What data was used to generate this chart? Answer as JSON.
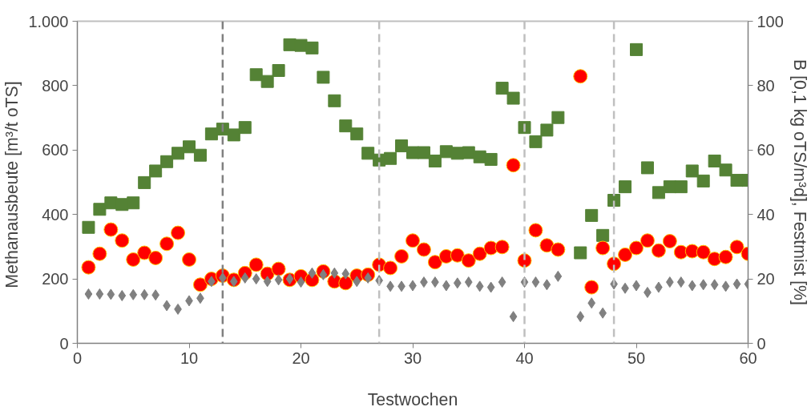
{
  "chart_data": {
    "type": "scatter",
    "xlabel": "Testwochen",
    "ylabel": "Methanausbeute  [m³/t oTS]",
    "y2label": "B [0,1 kg oTS/m³d], Festmist [%]",
    "xlim": [
      0,
      60
    ],
    "xticks": [
      0,
      10,
      20,
      30,
      40,
      50,
      60
    ],
    "ylim": [
      0,
      1000
    ],
    "yticks": [
      0,
      200,
      400,
      600,
      800,
      {
        "value": 1000,
        "label": "1.000"
      }
    ],
    "y2lim": [
      0,
      100
    ],
    "y2ticks": [
      0,
      20,
      40,
      60,
      80,
      100
    ],
    "grid": false,
    "ref_lines": [
      {
        "axis": "x",
        "value": 13,
        "color": "#808080",
        "line_style": "dashed"
      },
      {
        "axis": "x",
        "value": 27,
        "color": "#bfbfbf",
        "line_style": "dashed"
      },
      {
        "axis": "x",
        "value": 40,
        "color": "#bfbfbf",
        "line_style": "dashed"
      },
      {
        "axis": "x",
        "value": 48,
        "color": "#bfbfbf",
        "line_style": "dashed"
      }
    ],
    "series": [
      {
        "color": "#548235",
        "marker": "square",
        "axis": "y2",
        "x": [
          1,
          2,
          3,
          4,
          5,
          6,
          7,
          8,
          9,
          10,
          11,
          12,
          13,
          14,
          15,
          16,
          17,
          18,
          19,
          20,
          21,
          22,
          23,
          24,
          25,
          26,
          27,
          28,
          29,
          30,
          31,
          32,
          33,
          34,
          35,
          36,
          37,
          38,
          39,
          40,
          41,
          42,
          43,
          45,
          46,
          47,
          48,
          49,
          50,
          51,
          52,
          53,
          54,
          55,
          56,
          57,
          58,
          59,
          60
        ],
        "values": [
          36,
          41.6,
          43.6,
          43.1,
          43.6,
          49.9,
          53.5,
          56.4,
          59,
          61,
          58.4,
          65,
          66.5,
          64.7,
          67,
          83.4,
          81.3,
          84.7,
          92.7,
          92.5,
          91.7,
          82.6,
          75.3,
          67.5,
          65,
          59,
          56.9,
          57.4,
          61.3,
          59.2,
          59.2,
          56.6,
          59.5,
          59,
          59.2,
          57.9,
          57.1,
          79.2,
          76.1,
          67,
          62.6,
          66.2,
          70.1,
          28.1,
          39.7,
          33.5,
          44.4,
          48.6,
          91.2,
          54.5,
          46.8,
          48.6,
          48.6,
          53.5,
          50.4,
          56.6,
          53.8,
          50.6,
          50.6
        ]
      },
      {
        "color": "#ff0000",
        "marker": "circle",
        "axis": "y",
        "x": [
          1,
          2,
          3,
          4,
          5,
          6,
          7,
          8,
          9,
          10,
          11,
          12,
          13,
          14,
          15,
          16,
          17,
          18,
          19,
          20,
          21,
          22,
          23,
          24,
          25,
          26,
          27,
          28,
          29,
          30,
          31,
          32,
          33,
          34,
          35,
          36,
          37,
          38,
          39,
          40,
          41,
          42,
          43,
          45,
          46,
          47,
          48,
          49,
          50,
          51,
          52,
          53,
          54,
          55,
          56,
          57,
          58,
          59,
          60
        ],
        "values": [
          236,
          278,
          353,
          319,
          260,
          281,
          265,
          309,
          343,
          260,
          182,
          200,
          210,
          197,
          218,
          244,
          216,
          231,
          197,
          208,
          197,
          223,
          192,
          187,
          210,
          213,
          244,
          234,
          270,
          319,
          291,
          252,
          270,
          273,
          257,
          278,
          296,
          299,
          553,
          257,
          351,
          304,
          291,
          829,
          174,
          296,
          247,
          275,
          296,
          319,
          288,
          317,
          283,
          286,
          283,
          262,
          268,
          299,
          278
        ]
      },
      {
        "color": "#808080",
        "marker": "diamond",
        "axis": "y2",
        "x": [
          1,
          2,
          3,
          4,
          5,
          6,
          7,
          8,
          9,
          10,
          11,
          12,
          13,
          14,
          15,
          16,
          17,
          18,
          19,
          20,
          21,
          22,
          23,
          24,
          25,
          26,
          27,
          28,
          29,
          30,
          31,
          32,
          33,
          34,
          35,
          36,
          37,
          38,
          39,
          40,
          41,
          42,
          43,
          45,
          46,
          47,
          48,
          49,
          50,
          51,
          52,
          53,
          54,
          55,
          56,
          57,
          58,
          59,
          60
        ],
        "values": [
          15.3,
          15.3,
          15.2,
          14.8,
          15.1,
          15.1,
          15.0,
          11.7,
          10.6,
          13.2,
          14.0,
          19.2,
          20.3,
          19.2,
          20.3,
          20.0,
          19.2,
          19.7,
          20.0,
          19.0,
          21.8,
          21.3,
          21.8,
          21.6,
          19.2,
          20.3,
          19.5,
          17.7,
          17.7,
          17.9,
          19.0,
          19.0,
          17.9,
          18.7,
          19.0,
          17.7,
          17.4,
          19.0,
          8.3,
          19.0,
          19.0,
          18.2,
          20.8,
          8.3,
          12.5,
          9.4,
          18.4,
          17.1,
          17.9,
          15.8,
          17.4,
          19.0,
          19.0,
          17.9,
          18.2,
          18.2,
          17.7,
          18.4,
          18.4
        ]
      }
    ]
  }
}
